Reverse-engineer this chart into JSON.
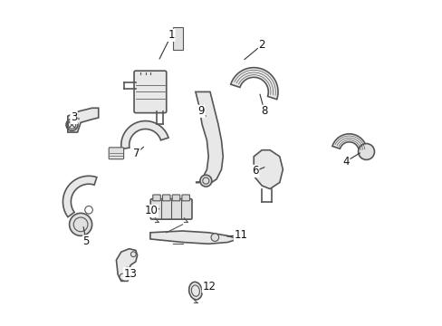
{
  "bg_color": "#ffffff",
  "line_color": "#555555",
  "label_color": "#111111",
  "figsize": [
    4.89,
    3.6
  ],
  "dpi": 100,
  "label_positions": {
    "1": [
      0.345,
      0.895,
      0.305,
      0.815
    ],
    "2": [
      0.625,
      0.865,
      0.565,
      0.815
    ],
    "3": [
      0.044,
      0.64,
      0.068,
      0.635
    ],
    "4": [
      0.885,
      0.505,
      0.935,
      0.535
    ],
    "5": [
      0.082,
      0.258,
      0.072,
      0.31
    ],
    "6": [
      0.605,
      0.475,
      0.64,
      0.49
    ],
    "7": [
      0.238,
      0.53,
      0.265,
      0.555
    ],
    "8": [
      0.633,
      0.66,
      0.617,
      0.72
    ],
    "9": [
      0.438,
      0.66,
      0.452,
      0.645
    ],
    "10": [
      0.283,
      0.352,
      0.315,
      0.36
    ],
    "11": [
      0.56,
      0.278,
      0.51,
      0.272
    ],
    "12": [
      0.462,
      0.118,
      0.438,
      0.11
    ],
    "13": [
      0.218,
      0.158,
      0.205,
      0.185
    ]
  }
}
